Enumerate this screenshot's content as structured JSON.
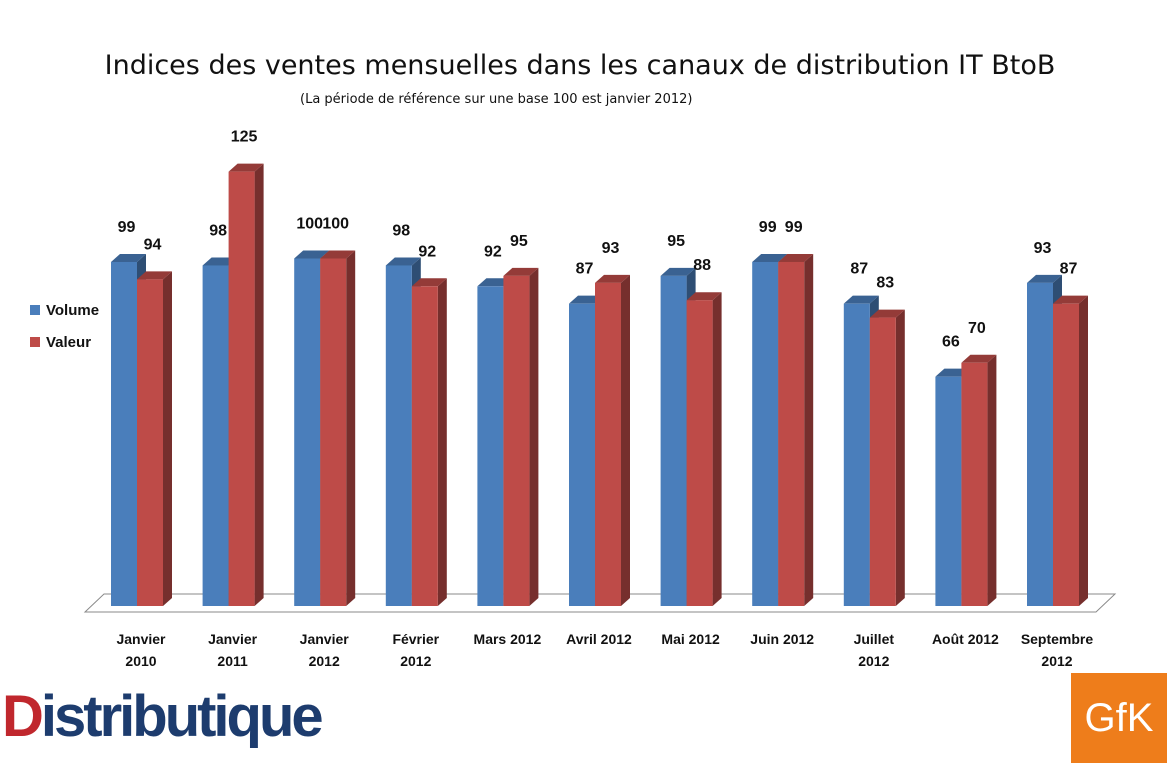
{
  "chart_data": {
    "type": "bar",
    "title": "Indices des ventes mensuelles dans les canaux de distribution IT BtoB",
    "subtitle": "(La période de référence sur une base 100 est janvier 2012)",
    "categories": [
      [
        "Janvier",
        "2010"
      ],
      [
        "Janvier",
        "2011"
      ],
      [
        "Janvier",
        "2012"
      ],
      [
        "Février",
        "2012"
      ],
      [
        "Mars 2012"
      ],
      [
        "Avril 2012"
      ],
      [
        "Mai 2012"
      ],
      [
        "Juin 2012"
      ],
      [
        "Juillet",
        "2012"
      ],
      [
        "Août 2012"
      ],
      [
        "Septembre",
        "2012"
      ]
    ],
    "series": [
      {
        "name": "Volume",
        "color": "#4a7ebb",
        "values": [
          99,
          98,
          100,
          98,
          92,
          87,
          95,
          99,
          87,
          66,
          93
        ]
      },
      {
        "name": "Valeur",
        "color": "#be4b48",
        "values": [
          94,
          125,
          100,
          92,
          95,
          93,
          88,
          99,
          83,
          70,
          87
        ]
      }
    ],
    "ylim": [
      0,
      125
    ],
    "grid": false,
    "legend_position": "left"
  },
  "logos": {
    "left_first": "D",
    "left_rest": "istributique",
    "right": "GfK"
  }
}
